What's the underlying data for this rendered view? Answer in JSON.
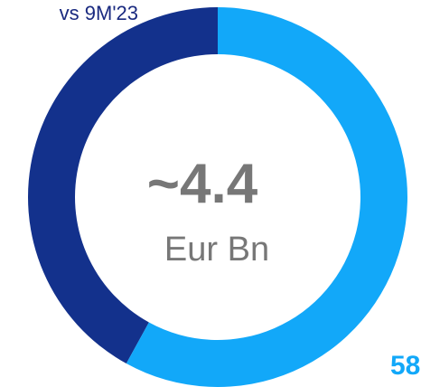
{
  "chart_data": {
    "type": "donut",
    "subtitle": "vs 9M'23",
    "center_value": "~4.4",
    "center_unit": "Eur Bn",
    "values": [
      58,
      42
    ],
    "colors": [
      "#12a8f9",
      "#13318c"
    ]
  }
}
